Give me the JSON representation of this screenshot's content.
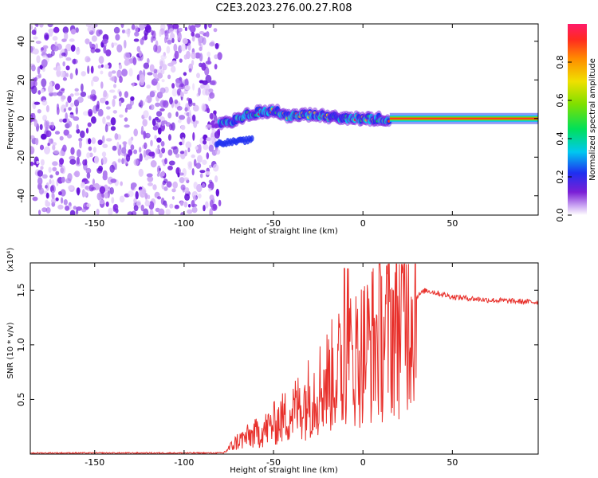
{
  "title": "C2E3.2023.276.00.27.R08",
  "chart_data": [
    {
      "type": "heatmap",
      "xlabel": "Height of straight line (km)",
      "ylabel": "Frequency (Hz)",
      "xlim": [
        -186,
        98
      ],
      "ylim": [
        -50,
        49
      ],
      "xticks": [
        -150,
        -100,
        -50,
        0,
        50
      ],
      "yticks": [
        -40,
        -20,
        0,
        20,
        40
      ],
      "noise_region_x": [
        -186,
        -80
      ],
      "signal_trace": [
        {
          "x": -80,
          "y": -3
        },
        {
          "x": -70,
          "y": 0
        },
        {
          "x": -60,
          "y": 3
        },
        {
          "x": -50,
          "y": 4
        },
        {
          "x": -40,
          "y": 1
        },
        {
          "x": -30,
          "y": 2
        },
        {
          "x": -20,
          "y": 1
        },
        {
          "x": -10,
          "y": 0
        },
        {
          "x": 0,
          "y": 0
        },
        {
          "x": 15,
          "y": 0
        },
        {
          "x": 95,
          "y": 0
        }
      ],
      "lower_branch": [
        {
          "x": -82,
          "y": -13
        },
        {
          "x": -62,
          "y": -11
        }
      ],
      "colorbar": {
        "label": "Normalized spectral amplitude",
        "range": [
          0,
          1
        ],
        "ticks": [
          "0.0",
          "0.2",
          "0.4",
          "0.6",
          "0.8"
        ]
      }
    },
    {
      "type": "line",
      "xlabel": "Height of straight line (km)",
      "ylabel": "SNR (10 * v/v)",
      "scale_label": "(x10⁴)",
      "xlim": [
        -186,
        98
      ],
      "ylim": [
        0,
        1.75
      ],
      "xticks": [
        -150,
        -100,
        -50,
        0,
        50
      ],
      "yticks": [
        "0.5",
        "1.0",
        "1.5"
      ],
      "series": [
        {
          "name": "SNR",
          "color": "#e8302b",
          "envelope": [
            {
              "x": -186,
              "mean": 0.01
            },
            {
              "x": -78,
              "mean": 0.01
            },
            {
              "x": -70,
              "mean": 0.12
            },
            {
              "x": -55,
              "mean": 0.22
            },
            {
              "x": -40,
              "mean": 0.38
            },
            {
              "x": -25,
              "mean": 0.6
            },
            {
              "x": -10,
              "mean": 0.82
            },
            {
              "x": 0,
              "mean": 0.95
            },
            {
              "x": 15,
              "mean": 1.15
            },
            {
              "x": 28,
              "mean": 1.42
            },
            {
              "x": 35,
              "mean": 1.5
            },
            {
              "x": 50,
              "mean": 1.44
            },
            {
              "x": 70,
              "mean": 1.41
            },
            {
              "x": 98,
              "mean": 1.39
            }
          ]
        }
      ]
    }
  ]
}
